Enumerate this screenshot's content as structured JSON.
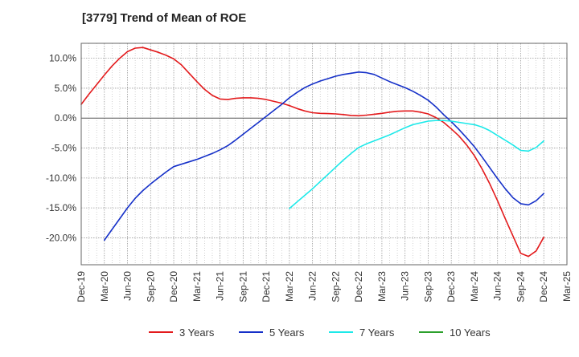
{
  "chart_data": {
    "type": "line",
    "title": "[3779]  Trend of Mean of ROE",
    "xlabel": "",
    "ylabel": "",
    "x_ticks": [
      "Dec-19",
      "Mar-20",
      "Jun-20",
      "Sep-20",
      "Dec-20",
      "Mar-21",
      "Jun-21",
      "Sep-21",
      "Dec-21",
      "Mar-22",
      "Jun-22",
      "Sep-22",
      "Dec-22",
      "Mar-23",
      "Jun-23",
      "Sep-23",
      "Dec-23",
      "Mar-24",
      "Jun-24",
      "Sep-24",
      "Dec-24",
      "Mar-25"
    ],
    "y_ticks": [
      "10.0%",
      "5.0%",
      "0.0%",
      "-5.0%",
      "-10.0%",
      "-15.0%",
      "-20.0%"
    ],
    "y_tick_values": [
      10,
      5,
      0,
      -5,
      -10,
      -15,
      -20
    ],
    "ylim": [
      -24.5,
      12.5
    ],
    "grid": true,
    "legend_position": "bottom",
    "series": [
      {
        "name": "3 Years",
        "color": "#e31a1c",
        "points": [
          [
            "Dec-19",
            2.3
          ],
          [
            "Jan-20",
            4.0
          ],
          [
            "Feb-20",
            5.6
          ],
          [
            "Mar-20",
            7.2
          ],
          [
            "Apr-20",
            8.7
          ],
          [
            "May-20",
            10.0
          ],
          [
            "Jun-20",
            11.1
          ],
          [
            "Jul-20",
            11.7
          ],
          [
            "Aug-20",
            11.8
          ],
          [
            "Sep-20",
            11.4
          ],
          [
            "Oct-20",
            11.0
          ],
          [
            "Nov-20",
            10.5
          ],
          [
            "Dec-20",
            9.9
          ],
          [
            "Jan-21",
            8.9
          ],
          [
            "Feb-21",
            7.5
          ],
          [
            "Mar-21",
            6.1
          ],
          [
            "Apr-21",
            4.8
          ],
          [
            "May-21",
            3.8
          ],
          [
            "Jun-21",
            3.2
          ],
          [
            "Jul-21",
            3.1
          ],
          [
            "Aug-21",
            3.3
          ],
          [
            "Sep-21",
            3.4
          ],
          [
            "Oct-21",
            3.4
          ],
          [
            "Nov-21",
            3.3
          ],
          [
            "Dec-21",
            3.1
          ],
          [
            "Jan-22",
            2.8
          ],
          [
            "Feb-22",
            2.5
          ],
          [
            "Mar-22",
            2.1
          ],
          [
            "Apr-22",
            1.6
          ],
          [
            "May-22",
            1.2
          ],
          [
            "Jun-22",
            0.9
          ],
          [
            "Jul-22",
            0.8
          ],
          [
            "Aug-22",
            0.75
          ],
          [
            "Sep-22",
            0.7
          ],
          [
            "Oct-22",
            0.6
          ],
          [
            "Nov-22",
            0.45
          ],
          [
            "Dec-22",
            0.4
          ],
          [
            "Jan-23",
            0.5
          ],
          [
            "Feb-23",
            0.65
          ],
          [
            "Mar-23",
            0.8
          ],
          [
            "Apr-23",
            1.0
          ],
          [
            "May-23",
            1.15
          ],
          [
            "Jun-23",
            1.2
          ],
          [
            "Jul-23",
            1.2
          ],
          [
            "Aug-23",
            1.0
          ],
          [
            "Sep-23",
            0.7
          ],
          [
            "Oct-23",
            0.1
          ],
          [
            "Nov-23",
            -0.7
          ],
          [
            "Dec-23",
            -1.8
          ],
          [
            "Jan-24",
            -3.0
          ],
          [
            "Feb-24",
            -4.5
          ],
          [
            "Mar-24",
            -6.3
          ],
          [
            "Apr-24",
            -8.5
          ],
          [
            "May-24",
            -11.0
          ],
          [
            "Jun-24",
            -13.8
          ],
          [
            "Jul-24",
            -16.8
          ],
          [
            "Aug-24",
            -19.7
          ],
          [
            "Sep-24",
            -22.6
          ],
          [
            "Oct-24",
            -23.1
          ],
          [
            "Nov-24",
            -22.2
          ],
          [
            "Dec-24",
            -19.9
          ]
        ]
      },
      {
        "name": "5 Years",
        "color": "#1530c8",
        "points": [
          [
            "Mar-20",
            -20.4
          ],
          [
            "Apr-20",
            -18.6
          ],
          [
            "May-20",
            -16.8
          ],
          [
            "Jun-20",
            -15.0
          ],
          [
            "Jul-20",
            -13.4
          ],
          [
            "Aug-20",
            -12.1
          ],
          [
            "Sep-20",
            -11.0
          ],
          [
            "Oct-20",
            -10.0
          ],
          [
            "Nov-20",
            -9.0
          ],
          [
            "Dec-20",
            -8.1
          ],
          [
            "Jan-21",
            -7.7
          ],
          [
            "Feb-21",
            -7.3
          ],
          [
            "Mar-21",
            -6.9
          ],
          [
            "Apr-21",
            -6.4
          ],
          [
            "May-21",
            -5.9
          ],
          [
            "Jun-21",
            -5.3
          ],
          [
            "Jul-21",
            -4.6
          ],
          [
            "Aug-21",
            -3.7
          ],
          [
            "Sep-21",
            -2.7
          ],
          [
            "Oct-21",
            -1.7
          ],
          [
            "Nov-21",
            -0.7
          ],
          [
            "Dec-21",
            0.3
          ],
          [
            "Jan-22",
            1.3
          ],
          [
            "Feb-22",
            2.3
          ],
          [
            "Mar-22",
            3.4
          ],
          [
            "Apr-22",
            4.3
          ],
          [
            "May-22",
            5.1
          ],
          [
            "Jun-22",
            5.7
          ],
          [
            "Jul-22",
            6.2
          ],
          [
            "Aug-22",
            6.6
          ],
          [
            "Sep-22",
            7.0
          ],
          [
            "Oct-22",
            7.3
          ],
          [
            "Nov-22",
            7.5
          ],
          [
            "Dec-22",
            7.7
          ],
          [
            "Jan-23",
            7.6
          ],
          [
            "Feb-23",
            7.3
          ],
          [
            "Mar-23",
            6.7
          ],
          [
            "Apr-23",
            6.1
          ],
          [
            "May-23",
            5.6
          ],
          [
            "Jun-23",
            5.1
          ],
          [
            "Jul-23",
            4.5
          ],
          [
            "Aug-23",
            3.8
          ],
          [
            "Sep-23",
            3.0
          ],
          [
            "Oct-23",
            1.9
          ],
          [
            "Nov-23",
            0.6
          ],
          [
            "Dec-23",
            -0.6
          ],
          [
            "Jan-24",
            -1.9
          ],
          [
            "Feb-24",
            -3.3
          ],
          [
            "Mar-24",
            -4.8
          ],
          [
            "Apr-24",
            -6.5
          ],
          [
            "May-24",
            -8.3
          ],
          [
            "Jun-24",
            -10.1
          ],
          [
            "Jul-24",
            -11.8
          ],
          [
            "Aug-24",
            -13.3
          ],
          [
            "Sep-24",
            -14.3
          ],
          [
            "Oct-24",
            -14.5
          ],
          [
            "Nov-24",
            -13.8
          ],
          [
            "Dec-24",
            -12.6
          ]
        ]
      },
      {
        "name": "7 Years",
        "color": "#1de9e9",
        "points": [
          [
            "Mar-22",
            -15.1
          ],
          [
            "Apr-22",
            -14.0
          ],
          [
            "May-22",
            -12.9
          ],
          [
            "Jun-22",
            -11.8
          ],
          [
            "Jul-22",
            -10.6
          ],
          [
            "Aug-22",
            -9.4
          ],
          [
            "Sep-22",
            -8.2
          ],
          [
            "Oct-22",
            -7.0
          ],
          [
            "Nov-22",
            -5.9
          ],
          [
            "Dec-22",
            -4.9
          ],
          [
            "Jan-23",
            -4.3
          ],
          [
            "Feb-23",
            -3.8
          ],
          [
            "Mar-23",
            -3.3
          ],
          [
            "Apr-23",
            -2.8
          ],
          [
            "May-23",
            -2.2
          ],
          [
            "Jun-23",
            -1.6
          ],
          [
            "Jul-23",
            -1.1
          ],
          [
            "Aug-23",
            -0.8
          ],
          [
            "Sep-23",
            -0.5
          ],
          [
            "Oct-23",
            -0.4
          ],
          [
            "Nov-23",
            -0.4
          ],
          [
            "Dec-23",
            -0.5
          ],
          [
            "Jan-24",
            -0.7
          ],
          [
            "Feb-24",
            -0.9
          ],
          [
            "Mar-24",
            -1.1
          ],
          [
            "Apr-24",
            -1.5
          ],
          [
            "May-24",
            -2.1
          ],
          [
            "Jun-24",
            -2.9
          ],
          [
            "Jul-24",
            -3.7
          ],
          [
            "Aug-24",
            -4.5
          ],
          [
            "Sep-24",
            -5.4
          ],
          [
            "Oct-24",
            -5.5
          ],
          [
            "Nov-24",
            -4.9
          ],
          [
            "Dec-24",
            -3.8
          ]
        ]
      },
      {
        "name": "10 Years",
        "color": "#2ca02c",
        "points": []
      }
    ]
  }
}
